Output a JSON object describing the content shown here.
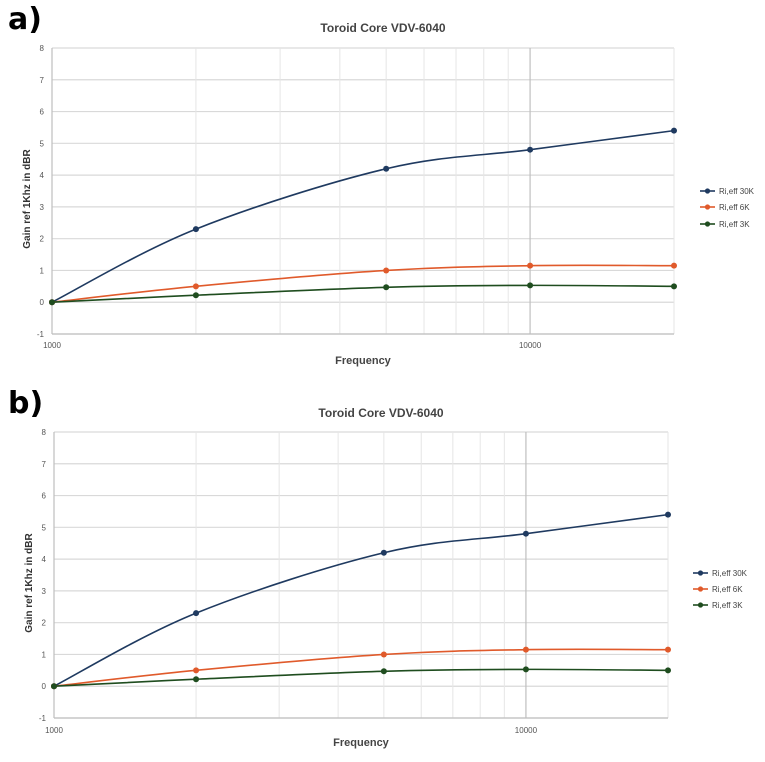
{
  "panels": [
    "a)",
    "b)"
  ],
  "chart_data": [
    {
      "type": "line",
      "title": "Toroid Core VDV-6040",
      "xlabel": "Frequency",
      "ylabel": "Gain ref 1Khz in dBR",
      "x_scale": "log",
      "xlim": [
        1000,
        20000
      ],
      "ylim": [
        -1,
        8
      ],
      "x_tick_labels": [
        "1000",
        "10000"
      ],
      "y_tick_labels": [
        "-1",
        "0",
        "1",
        "2",
        "3",
        "4",
        "5",
        "6",
        "7",
        "8"
      ],
      "grid": true,
      "legend_position": "right",
      "x": [
        1000,
        2000,
        5000,
        10000,
        20000
      ],
      "series": [
        {
          "name": "Ri,eff 30K",
          "color": "#1f3a60",
          "values": [
            0,
            2.3,
            4.2,
            4.8,
            5.4
          ]
        },
        {
          "name": "Ri,eff 6K",
          "color": "#e05a2b",
          "values": [
            0,
            0.5,
            1.0,
            1.15,
            1.15
          ]
        },
        {
          "name": "Ri,eff 3K",
          "color": "#1f4d1f",
          "values": [
            0,
            0.22,
            0.47,
            0.53,
            0.5
          ]
        }
      ]
    },
    {
      "type": "line",
      "title": "Toroid Core VDV-6040",
      "xlabel": "Frequency",
      "ylabel": "Gain ref 1Khz in dBR",
      "x_scale": "log",
      "xlim": [
        1000,
        20000
      ],
      "ylim": [
        -1,
        8
      ],
      "x_tick_labels": [
        "1000",
        "10000"
      ],
      "y_tick_labels": [
        "-1",
        "0",
        "1",
        "2",
        "3",
        "4",
        "5",
        "6",
        "7",
        "8"
      ],
      "grid": true,
      "legend_position": "right",
      "x": [
        1000,
        2000,
        5000,
        10000,
        20000
      ],
      "series": [
        {
          "name": "Ri,eff 30K",
          "color": "#1f3a60",
          "values": [
            0,
            2.3,
            4.2,
            4.8,
            5.4
          ]
        },
        {
          "name": "Ri,eff 6K",
          "color": "#e05a2b",
          "values": [
            0,
            0.5,
            1.0,
            1.15,
            1.15
          ]
        },
        {
          "name": "Ri,eff 3K",
          "color": "#1f4d1f",
          "values": [
            0,
            0.22,
            0.47,
            0.53,
            0.5
          ]
        }
      ]
    }
  ]
}
